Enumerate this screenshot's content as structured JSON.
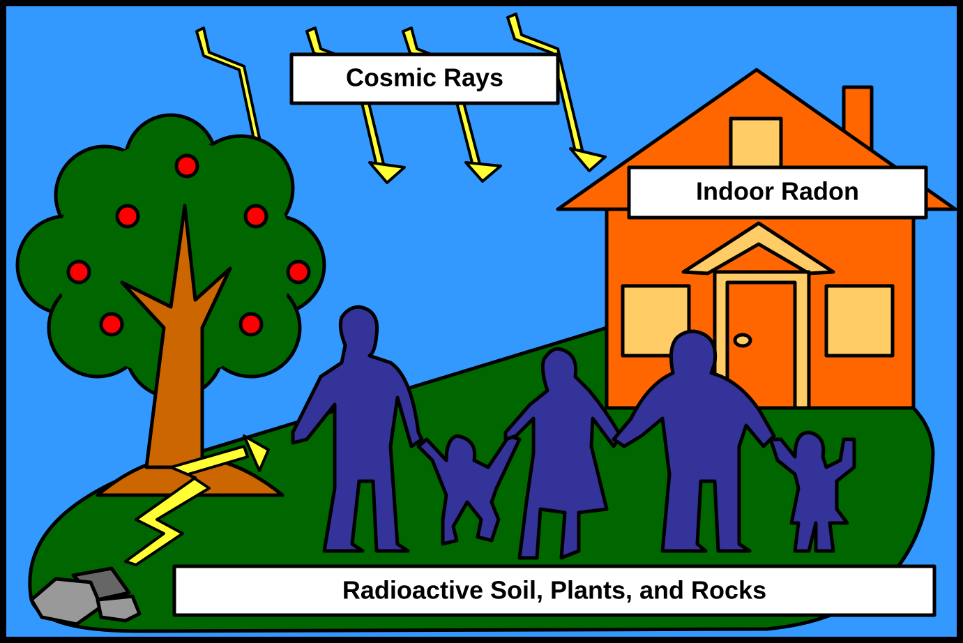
{
  "labels": {
    "cosmic": "Cosmic Rays",
    "radon": "Indoor Radon",
    "soil": "Radioactive Soil, Plants, and Rocks"
  }
}
